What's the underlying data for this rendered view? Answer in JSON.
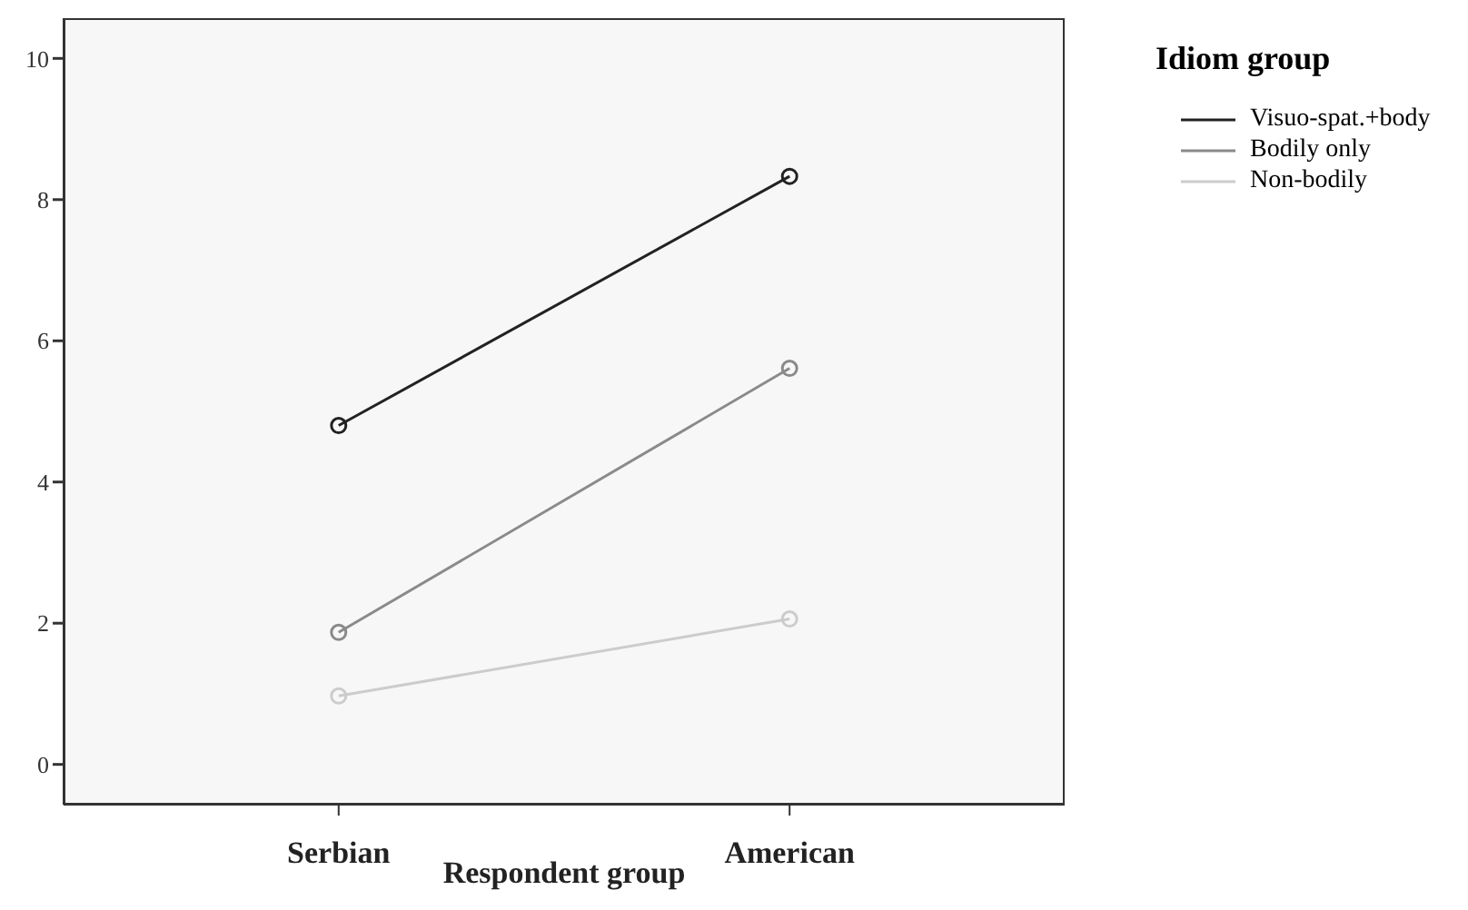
{
  "chart_data": {
    "type": "line",
    "xlabel": "Respondent group",
    "legend_title": "Idiom group",
    "categories": [
      "Serbian",
      "American"
    ],
    "series": [
      {
        "name": "Visuo-spat.+body",
        "color": "#222222",
        "values": [
          4.8,
          8.33
        ]
      },
      {
        "name": "Bodily only",
        "color": "#8a8a8a",
        "values": [
          1.87,
          5.61
        ]
      },
      {
        "name": "Non-bodily",
        "color": "#cccccc",
        "values": [
          0.97,
          2.06
        ]
      }
    ],
    "ylim": [
      -0.57,
      10.57
    ],
    "yticks": [
      0,
      2,
      4,
      6,
      8,
      10
    ],
    "grid": false,
    "legend": "top right",
    "marker": "circle",
    "line_style": "solid"
  }
}
